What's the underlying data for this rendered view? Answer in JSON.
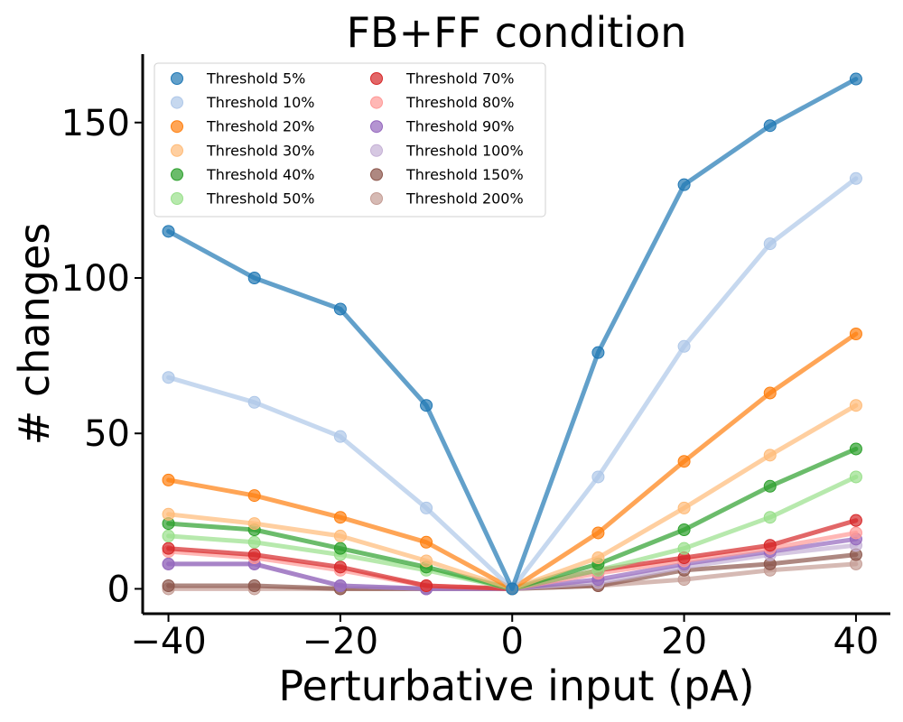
{
  "chart_data": {
    "type": "line",
    "title": "FB+FF condition",
    "xlabel": "Perturbative input (pA)",
    "ylabel": "# changes",
    "x": [
      -40,
      -30,
      -20,
      -10,
      0,
      10,
      20,
      30,
      40
    ],
    "xlim": [
      -43,
      44
    ],
    "ylim": [
      -8,
      172
    ],
    "xticks": [
      -40,
      -20,
      0,
      20,
      40
    ],
    "xtick_labels": [
      "−40",
      "−20",
      "0",
      "20",
      "40"
    ],
    "yticks": [
      0,
      50,
      100,
      150
    ],
    "ytick_labels": [
      "0",
      "50",
      "100",
      "150"
    ],
    "grid": false,
    "legend_position": "top-left",
    "legend_columns": 2,
    "series": [
      {
        "name": "Threshold 5%",
        "color": "#1f77b4",
        "values": [
          115,
          100,
          90,
          59,
          0,
          76,
          130,
          149,
          164
        ]
      },
      {
        "name": "Threshold 10%",
        "color": "#aec7e8",
        "values": [
          68,
          60,
          49,
          26,
          0,
          36,
          78,
          111,
          132
        ]
      },
      {
        "name": "Threshold 20%",
        "color": "#ff7f0e",
        "values": [
          35,
          30,
          23,
          15,
          0,
          18,
          41,
          63,
          82
        ]
      },
      {
        "name": "Threshold 30%",
        "color": "#ffbb78",
        "values": [
          24,
          21,
          17,
          9,
          0,
          10,
          26,
          43,
          59
        ]
      },
      {
        "name": "Threshold 40%",
        "color": "#2ca02c",
        "values": [
          21,
          19,
          13,
          7,
          0,
          8,
          19,
          33,
          45
        ]
      },
      {
        "name": "Threshold 50%",
        "color": "#98df8a",
        "values": [
          17,
          15,
          11,
          6,
          0,
          6,
          13,
          23,
          36
        ]
      },
      {
        "name": "Threshold 70%",
        "color": "#d62728",
        "values": [
          13,
          11,
          7,
          1,
          0,
          6,
          10,
          14,
          22
        ]
      },
      {
        "name": "Threshold 80%",
        "color": "#ff9896",
        "values": [
          12,
          10,
          6,
          1,
          0,
          5,
          9,
          13,
          18
        ]
      },
      {
        "name": "Threshold 90%",
        "color": "#9467bd",
        "values": [
          8,
          8,
          1,
          0,
          0,
          3,
          8,
          12,
          16
        ]
      },
      {
        "name": "Threshold 100%",
        "color": "#c5b0d5",
        "values": [
          8,
          8,
          1,
          0,
          0,
          2,
          7,
          11,
          14
        ]
      },
      {
        "name": "Threshold 150%",
        "color": "#8c564b",
        "values": [
          1,
          1,
          0,
          0,
          0,
          1,
          6,
          8,
          11
        ]
      },
      {
        "name": "Threshold 200%",
        "color": "#c49c94",
        "values": [
          0,
          0,
          0,
          0,
          0,
          1,
          3,
          6,
          8
        ]
      }
    ]
  }
}
